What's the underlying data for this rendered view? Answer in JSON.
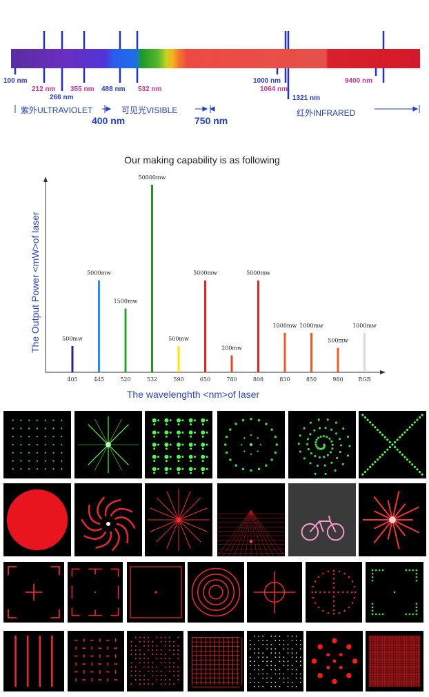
{
  "spectrum": {
    "wavelengths_top": [
      {
        "text": "100 nm",
        "color": "blue"
      },
      {
        "text": "212 nm",
        "color": "pink"
      },
      {
        "text": "266 nm",
        "color": "blue"
      },
      {
        "text": "355 nm",
        "color": "pink"
      },
      {
        "text": "488 nm",
        "color": "blue"
      },
      {
        "text": "532 nm",
        "color": "pink"
      },
      {
        "text": "1000 nm",
        "color": "blue"
      },
      {
        "text": "1064 nm",
        "color": "pink"
      },
      {
        "text": "1321 nm",
        "color": "blue"
      },
      {
        "text": "9400 nm",
        "color": "pink"
      }
    ],
    "uv_label": "紫外ULTRAVIOLET",
    "visible_label": "可见光VISIBLE",
    "ir_label": "红外INFRARED",
    "boundary_400": "400 nm",
    "boundary_750": "750 nm"
  },
  "chart_title": "Our making capability is as following",
  "chart_data": {
    "type": "bar",
    "title": "Our making capability is as following",
    "xlabel": "The wavelenghth <nm>of laser",
    "ylabel": "The Output Power <mW>of laser",
    "categories": [
      "405",
      "445",
      "520",
      "532",
      "590",
      "650",
      "780",
      "808",
      "830",
      "850",
      "980",
      "RGB"
    ],
    "values": [
      500,
      5000,
      1500,
      50000,
      500,
      5000,
      200,
      5000,
      1000,
      1000,
      500,
      1000
    ],
    "data_labels": [
      "500mw",
      "5000mw",
      "1500mw",
      "50000mw",
      "500mw",
      "5000mw",
      "200mw",
      "5000mw",
      "1000mw",
      "1000mw",
      "500mw",
      "1000mw"
    ],
    "bar_heights_relative": [
      0.14,
      0.49,
      0.34,
      1.0,
      0.14,
      0.49,
      0.09,
      0.49,
      0.21,
      0.21,
      0.13,
      0.21
    ],
    "colors": [
      "#2f1f8f",
      "#1e90ff",
      "#2ca02c",
      "#1a9a1a",
      "#ffe600",
      "#e8231e",
      "#e8461e",
      "#e8231e",
      "#f05a1e",
      "#f05a1e",
      "#f05a1e",
      "#d8d8d8"
    ],
    "grid": false,
    "legend": "none"
  }
}
